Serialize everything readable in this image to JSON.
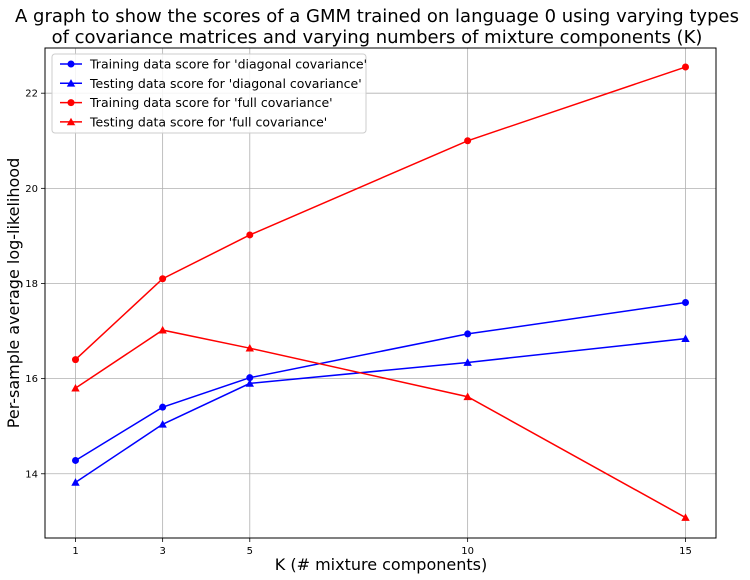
{
  "chart_data": {
    "type": "line",
    "title_lines": [
      "A graph to show the scores of a GMM trained on language 0 using varying types",
      "of covariance matrices and varying numbers of mixture components (K)"
    ],
    "xlabel": "K (# mixture components)",
    "ylabel": "Per-sample average log-likelihood",
    "x": [
      1,
      3,
      5,
      10,
      15
    ],
    "x_ticks": [
      1,
      3,
      5,
      10,
      15
    ],
    "y_ticks": [
      14,
      16,
      18,
      20,
      22
    ],
    "xlim": [
      0.3,
      15.7
    ],
    "ylim": [
      12.65,
      22.95
    ],
    "grid": true,
    "legend_position": "upper-left",
    "series": [
      {
        "name": "Training data score for 'diagonal covariance'",
        "color": "#0000ff",
        "marker": "circle",
        "values": [
          14.28,
          15.4,
          16.02,
          16.94,
          17.6
        ]
      },
      {
        "name": "Testing data score for 'diagonal covariance'",
        "color": "#0000ff",
        "marker": "triangle",
        "values": [
          13.82,
          15.04,
          15.9,
          16.34,
          16.84
        ]
      },
      {
        "name": "Training data score for 'full covariance'",
        "color": "#ff0000",
        "marker": "circle",
        "values": [
          16.4,
          18.1,
          19.02,
          21.0,
          22.55
        ]
      },
      {
        "name": "Testing data score for 'full covariance'",
        "color": "#ff0000",
        "marker": "triangle",
        "values": [
          15.8,
          17.02,
          16.64,
          15.62,
          13.08
        ]
      }
    ]
  }
}
